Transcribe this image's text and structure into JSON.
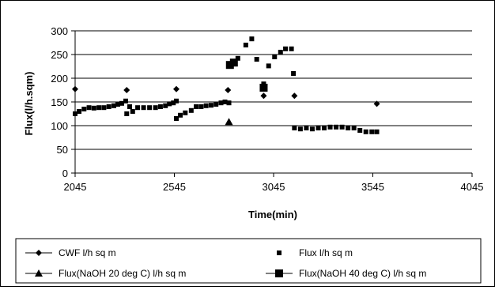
{
  "chart_data": {
    "type": "scatter",
    "title": "",
    "xlabel": "Time(min)",
    "ylabel": "Flux(l/h.sqm)",
    "xlim": [
      2045,
      4045
    ],
    "ylim": [
      0,
      300
    ],
    "xticks": [
      2045,
      2545,
      3045,
      3545,
      4045
    ],
    "yticks": [
      0,
      50,
      100,
      150,
      200,
      250,
      300
    ],
    "grid": "horizontal",
    "legend_position": "bottom",
    "series": [
      {
        "name": "CWF l/h sq m",
        "marker": "diamond",
        "marker_style": "line-with-marker",
        "color": "#000000",
        "points": [
          [
            2045,
            177
          ],
          [
            2305,
            175
          ],
          [
            2555,
            177
          ],
          [
            2815,
            175
          ],
          [
            2995,
            163
          ],
          [
            3150,
            163
          ],
          [
            3565,
            146
          ]
        ]
      },
      {
        "name": "Flux l/h sq m",
        "marker": "small-square",
        "marker_style": "marker-only",
        "color": "#000000",
        "points": [
          [
            2045,
            125
          ],
          [
            2065,
            130
          ],
          [
            2090,
            135
          ],
          [
            2115,
            138
          ],
          [
            2140,
            137
          ],
          [
            2165,
            138
          ],
          [
            2190,
            138
          ],
          [
            2215,
            140
          ],
          [
            2240,
            142
          ],
          [
            2260,
            145
          ],
          [
            2280,
            147
          ],
          [
            2300,
            152
          ],
          [
            2305,
            125
          ],
          [
            2320,
            140
          ],
          [
            2335,
            130
          ],
          [
            2360,
            138
          ],
          [
            2390,
            138
          ],
          [
            2420,
            138
          ],
          [
            2450,
            138
          ],
          [
            2475,
            140
          ],
          [
            2500,
            142
          ],
          [
            2520,
            146
          ],
          [
            2540,
            148
          ],
          [
            2555,
            152
          ],
          [
            2555,
            115
          ],
          [
            2575,
            122
          ],
          [
            2600,
            127
          ],
          [
            2630,
            132
          ],
          [
            2655,
            140
          ],
          [
            2680,
            140
          ],
          [
            2705,
            142
          ],
          [
            2730,
            143
          ],
          [
            2755,
            145
          ],
          [
            2780,
            148
          ],
          [
            2800,
            150
          ],
          [
            2820,
            148
          ],
          [
            2865,
            242
          ],
          [
            2905,
            270
          ],
          [
            2935,
            283
          ],
          [
            2960,
            240
          ],
          [
            2995,
            188
          ],
          [
            3020,
            226
          ],
          [
            3050,
            245
          ],
          [
            3080,
            255
          ],
          [
            3105,
            262
          ],
          [
            3135,
            262
          ],
          [
            3145,
            210
          ],
          [
            3150,
            95
          ],
          [
            3180,
            93
          ],
          [
            3210,
            95
          ],
          [
            3240,
            93
          ],
          [
            3270,
            95
          ],
          [
            3300,
            95
          ],
          [
            3330,
            97
          ],
          [
            3360,
            97
          ],
          [
            3390,
            97
          ],
          [
            3420,
            95
          ],
          [
            3450,
            95
          ],
          [
            3480,
            90
          ],
          [
            3510,
            87
          ],
          [
            3540,
            87
          ],
          [
            3565,
            87
          ]
        ]
      },
      {
        "name": "Flux(NaOH 20 deg C) l/h sq m",
        "marker": "triangle",
        "marker_style": "line-with-marker",
        "color": "#000000",
        "points": [
          [
            2820,
            108
          ]
        ]
      },
      {
        "name": "Flux(NaOH 40 deg C) l/h sq m",
        "marker": "large-square",
        "marker_style": "line-with-marker",
        "color": "#000000",
        "points": [
          [
            2825,
            228
          ],
          [
            2845,
            233
          ],
          [
            2995,
            180
          ]
        ]
      }
    ]
  }
}
